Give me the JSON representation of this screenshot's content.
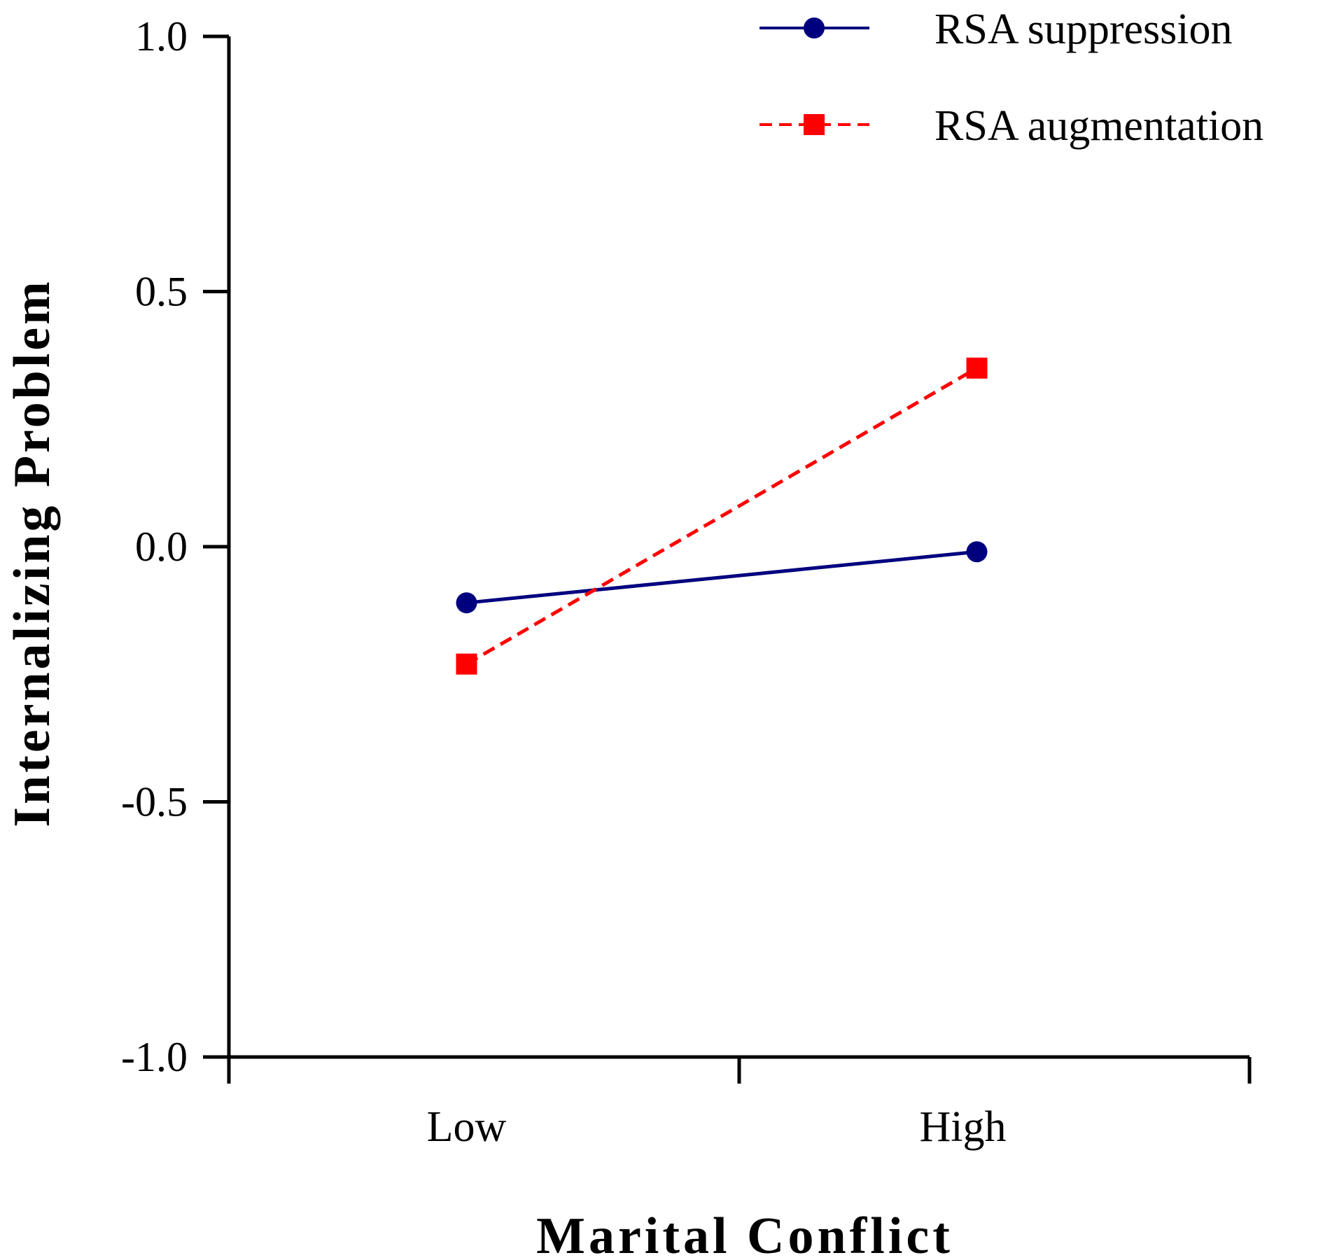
{
  "chart_data": {
    "type": "line",
    "title": "",
    "xlabel": "Marital Conflict",
    "ylabel": "Internalizing Problem",
    "categories": [
      "Low",
      "High"
    ],
    "ylim": [
      -1.0,
      1.0
    ],
    "yticks": [
      "-1.0",
      "-0.5",
      "0.0",
      "0.5",
      "1.0"
    ],
    "grid": false,
    "legend_position": "top-right",
    "series": [
      {
        "name": "RSA suppression",
        "values": [
          -0.11,
          -0.01
        ],
        "color": "#00007f",
        "line_style": "solid",
        "marker": "circle"
      },
      {
        "name": "RSA augmentation",
        "values": [
          -0.23,
          0.35
        ],
        "color": "#ff0000",
        "line_style": "dashed",
        "marker": "square"
      }
    ]
  }
}
